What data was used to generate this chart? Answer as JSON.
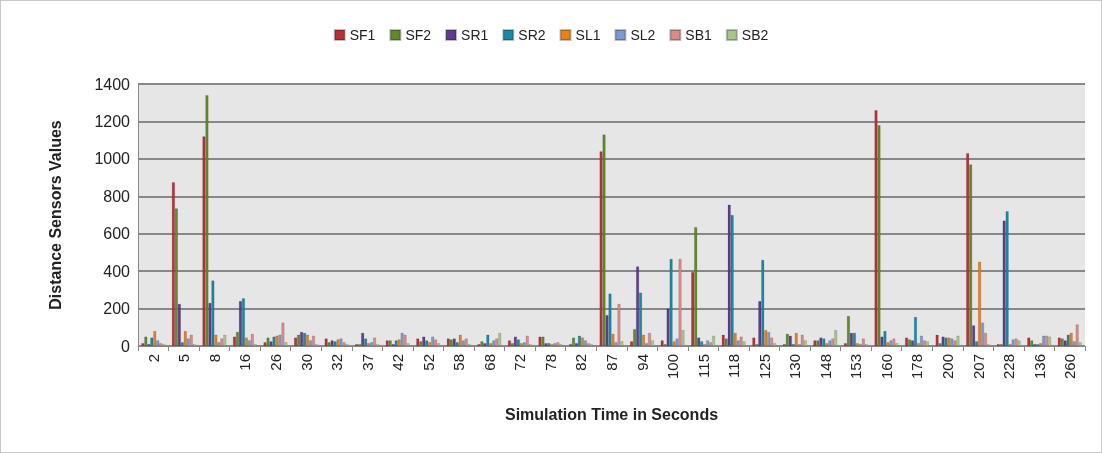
{
  "chart_data": {
    "type": "bar",
    "xlabel": "Simulation Time in Seconds",
    "ylabel": "Distance Sensors Values",
    "categories": [
      "2",
      "5",
      "8",
      "16",
      "26",
      "30",
      "32",
      "37",
      "42",
      "52",
      "58",
      "68",
      "72",
      "78",
      "82",
      "87",
      "94",
      "100",
      "115",
      "118",
      "125",
      "130",
      "148",
      "153",
      "160",
      "178",
      "200",
      "207",
      "228",
      "136",
      "260"
    ],
    "series": [
      {
        "name": "SF1",
        "color": "#b83235",
        "values": [
          15,
          875,
          1120,
          50,
          20,
          45,
          40,
          10,
          30,
          40,
          40,
          10,
          30,
          50,
          10,
          1040,
          25,
          30,
          395,
          60,
          45,
          10,
          30,
          15,
          1260,
          45,
          60,
          1030,
          10,
          45,
          45
        ]
      },
      {
        "name": "SF2",
        "color": "#5f8a2e",
        "values": [
          50,
          735,
          1340,
          75,
          45,
          60,
          20,
          10,
          30,
          25,
          35,
          25,
          15,
          50,
          45,
          1130,
          90,
          10,
          635,
          40,
          10,
          65,
          30,
          160,
          1180,
          35,
          15,
          970,
          10,
          30,
          40
        ]
      },
      {
        "name": "SR1",
        "color": "#5f3d8c",
        "values": [
          10,
          225,
          230,
          240,
          25,
          75,
          30,
          70,
          10,
          50,
          40,
          15,
          50,
          15,
          15,
          165,
          425,
          200,
          45,
          755,
          240,
          55,
          45,
          70,
          50,
          30,
          50,
          110,
          670,
          10,
          30
        ]
      },
      {
        "name": "SR2",
        "color": "#1a8aa4",
        "values": [
          45,
          20,
          350,
          255,
          50,
          70,
          25,
          40,
          30,
          30,
          20,
          60,
          35,
          15,
          55,
          280,
          285,
          465,
          25,
          700,
          460,
          10,
          40,
          70,
          80,
          155,
          45,
          25,
          720,
          10,
          60
        ]
      },
      {
        "name": "SL1",
        "color": "#e8801f",
        "values": [
          80,
          80,
          60,
          45,
          55,
          60,
          35,
          15,
          35,
          20,
          60,
          15,
          15,
          10,
          45,
          65,
          60,
          25,
          10,
          70,
          85,
          70,
          15,
          15,
          20,
          15,
          45,
          450,
          10,
          15,
          70
        ]
      },
      {
        "name": "SL2",
        "color": "#7b9ccd",
        "values": [
          30,
          40,
          20,
          30,
          60,
          30,
          40,
          20,
          70,
          50,
          30,
          30,
          20,
          15,
          30,
          20,
          15,
          40,
          30,
          30,
          75,
          10,
          30,
          10,
          30,
          55,
          40,
          125,
          35,
          55,
          25
        ]
      },
      {
        "name": "SB1",
        "color": "#d98b8b",
        "values": [
          15,
          60,
          40,
          65,
          125,
          55,
          20,
          45,
          60,
          35,
          40,
          40,
          55,
          20,
          15,
          225,
          70,
          465,
          20,
          50,
          45,
          60,
          40,
          40,
          40,
          30,
          30,
          70,
          40,
          55,
          115
        ]
      },
      {
        "name": "SB2",
        "color": "#a7c68a",
        "values": [
          10,
          10,
          60,
          10,
          20,
          10,
          10,
          10,
          15,
          15,
          10,
          70,
          10,
          10,
          10,
          25,
          30,
          85,
          55,
          25,
          15,
          30,
          85,
          10,
          15,
          25,
          55,
          10,
          30,
          50,
          20
        ]
      }
    ],
    "ylim": [
      0,
      1400
    ],
    "yticks": [
      0,
      200,
      400,
      600,
      800,
      1000,
      1200,
      1400
    ],
    "grid": "y",
    "legend": "top"
  }
}
